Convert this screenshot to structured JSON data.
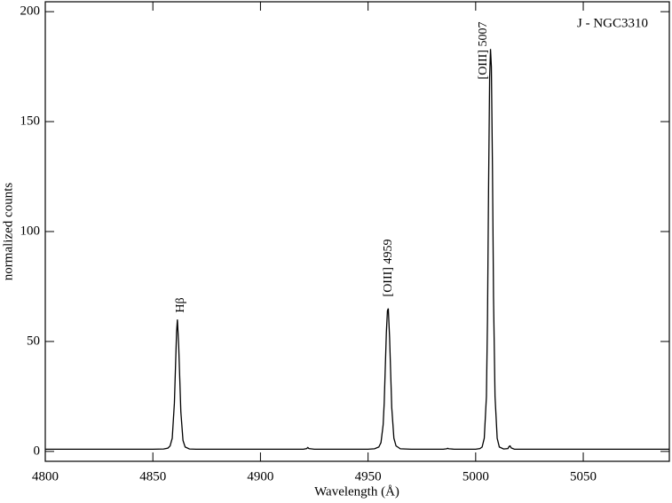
{
  "chart_data": {
    "type": "line",
    "title": "J - NGC3310",
    "x_label": "Wavelength  (Å)",
    "y_label": "normalized counts",
    "annotations": [
      "Hβ",
      "[OIII] 4959",
      "[OIII] 5007"
    ],
    "xlim": [
      4800,
      5090
    ],
    "ylim": [
      -4.5,
      204.5
    ],
    "xticks": [
      4800,
      4850,
      4900,
      4950,
      5000,
      5050
    ],
    "yticks": [
      0,
      50,
      100,
      150,
      200
    ],
    "color": "#000000",
    "x": [
      4800,
      4810,
      4820,
      4830,
      4840,
      4850,
      4855,
      4857,
      4858,
      4859,
      4860,
      4860.5,
      4861,
      4861.4,
      4862,
      4862.5,
      4863,
      4864,
      4865,
      4867,
      4870,
      4880,
      4890,
      4900,
      4910,
      4920,
      4921.5,
      4922,
      4922.5,
      4925,
      4930,
      4940,
      4950,
      4953,
      4955,
      4956,
      4957,
      4957.5,
      4958,
      4958.5,
      4959,
      4959.4,
      4960,
      4960.5,
      4961,
      4962,
      4963,
      4965,
      4970,
      4980,
      4985,
      4986.5,
      4987,
      4987.5,
      4990,
      4995,
      5000,
      5002,
      5003,
      5004,
      5005,
      5005.5,
      5006,
      5006.5,
      5006.9,
      5007.3,
      5007.8,
      5008.3,
      5009,
      5010,
      5011,
      5013,
      5015,
      5015.5,
      5016,
      5016.5,
      5018,
      5020,
      5030,
      5040,
      5050,
      5060,
      5070,
      5080,
      5090
    ],
    "values": [
      1,
      1,
      1,
      1,
      1,
      1,
      1.1,
      1.5,
      2.5,
      6,
      22,
      38,
      54,
      60,
      48,
      33,
      18,
      5,
      2,
      1.1,
      1,
      1,
      1,
      1,
      1,
      1,
      1.3,
      1.8,
      1.3,
      1,
      1,
      1,
      1,
      1.2,
      2,
      4,
      12,
      22,
      38,
      54,
      64,
      65,
      52,
      36,
      20,
      6,
      2.5,
      1.2,
      1,
      1,
      1,
      1.2,
      1.4,
      1.2,
      1,
      1,
      1,
      1.3,
      2,
      6,
      25,
      60,
      120,
      170,
      183,
      175,
      130,
      70,
      25,
      6,
      2,
      1.1,
      1.3,
      2.2,
      2.5,
      1.6,
      1,
      1,
      1,
      1,
      1,
      1,
      1,
      1,
      1
    ]
  }
}
